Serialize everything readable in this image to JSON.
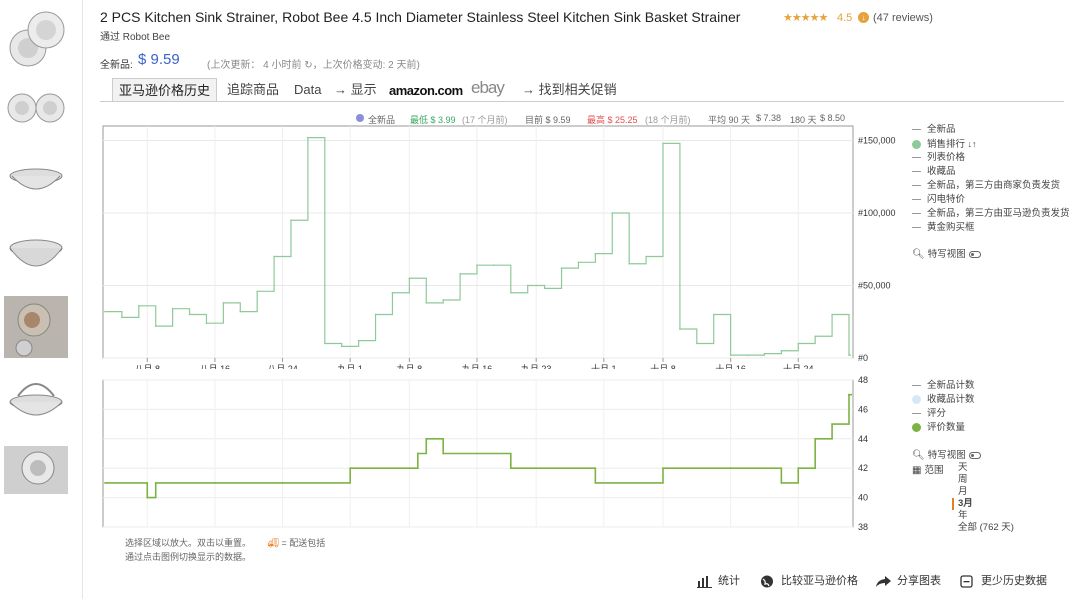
{
  "product": {
    "title": "2 PCS Kitchen Sink Strainer, Robot Bee 4.5 Inch Diameter Stainless Steel Kitchen Sink Basket Strainer",
    "stars": "★★★★★",
    "rating": "4.5",
    "reviews": "(47 reviews)",
    "byline": "通过 Robot Bee",
    "price_label": "全新品:",
    "price": "$ 9.59",
    "update_info": "(上次更新： 4 小时前  ↻，上次价格变动: 2 天前)"
  },
  "tabs": [
    {
      "label": "亚马逊价格历史"
    },
    {
      "label": "追踪商品"
    },
    {
      "label": "Data"
    },
    {
      "label": "→ 显示"
    },
    {
      "label": "amazon.com"
    },
    {
      "label": "ebay"
    },
    {
      "label": "→ 找到相关促销"
    }
  ],
  "summary": {
    "new_label": "全新品",
    "low": "最低 $ 3.99",
    "low_note": "(17 个月前)",
    "current": "目前 $ 9.59",
    "high": "最高 $ 25.25",
    "high_note": "(18 个月前)",
    "avg90_label": "平均 90 天",
    "avg90": "$ 7.38",
    "avg180_label": "180 天",
    "avg180": "$ 8.50"
  },
  "legend_top": [
    {
      "label": "全新品",
      "marker": "dash"
    },
    {
      "label": "销售排行",
      "marker": "dot",
      "color": "#8ec99a",
      "extra": "↓↑"
    },
    {
      "label": "列表价格",
      "marker": "dash"
    },
    {
      "label": "收藏品",
      "marker": "dash"
    },
    {
      "label": "全新品，第三方由商家负责发货",
      "marker": "dash"
    },
    {
      "label": "闪电特价",
      "marker": "dash"
    },
    {
      "label": "全新品，第三方由亚马逊负责发货",
      "marker": "dash"
    },
    {
      "label": "黄金购买框",
      "marker": "dash"
    }
  ],
  "legend_bottom": [
    {
      "label": "全新品计数",
      "marker": "dash"
    },
    {
      "label": "收藏品计数",
      "marker": "dot",
      "color": "#d6e8f7"
    },
    {
      "label": "评分",
      "marker": "dash"
    },
    {
      "label": "评价数量",
      "marker": "dot",
      "color": "#7cb342"
    }
  ],
  "closeup_label": "特写视图",
  "range": {
    "label": "范围",
    "options": [
      "天",
      "周",
      "月",
      "3月",
      "年",
      "全部 (762 天)"
    ],
    "selected": "3月"
  },
  "notes": {
    "line1": "选择区域以放大。双击以重置。",
    "shipping": "= 配送包括",
    "line2": "通过点击图例切换显示的数据。"
  },
  "footer": {
    "stats": "统计",
    "compare": "比较亚马逊价格",
    "share": "分享图表",
    "less_history": "更少历史数据"
  },
  "chart_data": [
    {
      "type": "line",
      "name": "sales-rank-chart",
      "x": [
        "八月 3",
        "八月 5",
        "八月 7",
        "八月 9",
        "八月 11",
        "八月 13",
        "八月 15",
        "八月 17",
        "八月 19",
        "八月 21",
        "八月 23",
        "八月 25",
        "八月 27",
        "八月 29",
        "八月 31",
        "九月 2",
        "九月 4",
        "九月 6",
        "九月 8",
        "九月 10",
        "九月 12",
        "九月 14",
        "九月 16",
        "九月 18",
        "九月 20",
        "九月 22",
        "九月 24",
        "九月 26",
        "九月 28",
        "九月 30",
        "十月 2",
        "十月 4",
        "十月 6",
        "十月 8",
        "十月 10",
        "十月 12",
        "十月 14",
        "十月 16",
        "十月 18",
        "十月 20",
        "十月 22",
        "十月 24",
        "十月 26",
        "十月 28",
        "十月 30"
      ],
      "series": [
        {
          "name": "销售排行",
          "color": "#8ec99a",
          "values": [
            32000,
            28000,
            36000,
            22000,
            34000,
            30000,
            24000,
            38000,
            32000,
            46000,
            70000,
            95000,
            152000,
            10000,
            8000,
            12000,
            30000,
            45000,
            55000,
            38000,
            40000,
            58000,
            64000,
            64000,
            45000,
            50000,
            48000,
            62000,
            66000,
            72000,
            100000,
            65000,
            70000,
            148000,
            20000,
            10000,
            30000,
            2000,
            2000,
            3000,
            5000,
            10000,
            15000,
            30000,
            2000
          ]
        }
      ],
      "xticks": [
        "八月 8",
        "八月 16",
        "八月 24",
        "九月 1",
        "九月 8",
        "九月 16",
        "九月 23",
        "十月 1",
        "十月 8",
        "十月 16",
        "十月 24"
      ],
      "yticks": [
        "#0",
        "#50,000",
        "#100,000",
        "#150,000"
      ],
      "ylim": [
        0,
        160000
      ],
      "grid": true
    },
    {
      "type": "line",
      "name": "review-count-chart",
      "x": [
        "八月 3",
        "八月 8",
        "八月 9",
        "八月 16",
        "八月 24",
        "九月 1",
        "九月 9",
        "九月 10",
        "九月 12",
        "九月 20",
        "九月 30",
        "十月 8",
        "十月 16",
        "十月 22",
        "十月 24",
        "十月 26",
        "十月 28",
        "十月 30"
      ],
      "series": [
        {
          "name": "评价数量",
          "color": "#7cb342",
          "values": [
            41,
            40,
            41,
            41,
            41,
            42,
            43,
            44,
            43,
            42,
            41,
            42,
            42,
            41,
            42,
            44,
            45,
            47
          ]
        }
      ],
      "yticks": [
        "38",
        "40",
        "42",
        "44",
        "46",
        "48"
      ],
      "ylim": [
        38,
        48
      ],
      "grid": true
    }
  ]
}
